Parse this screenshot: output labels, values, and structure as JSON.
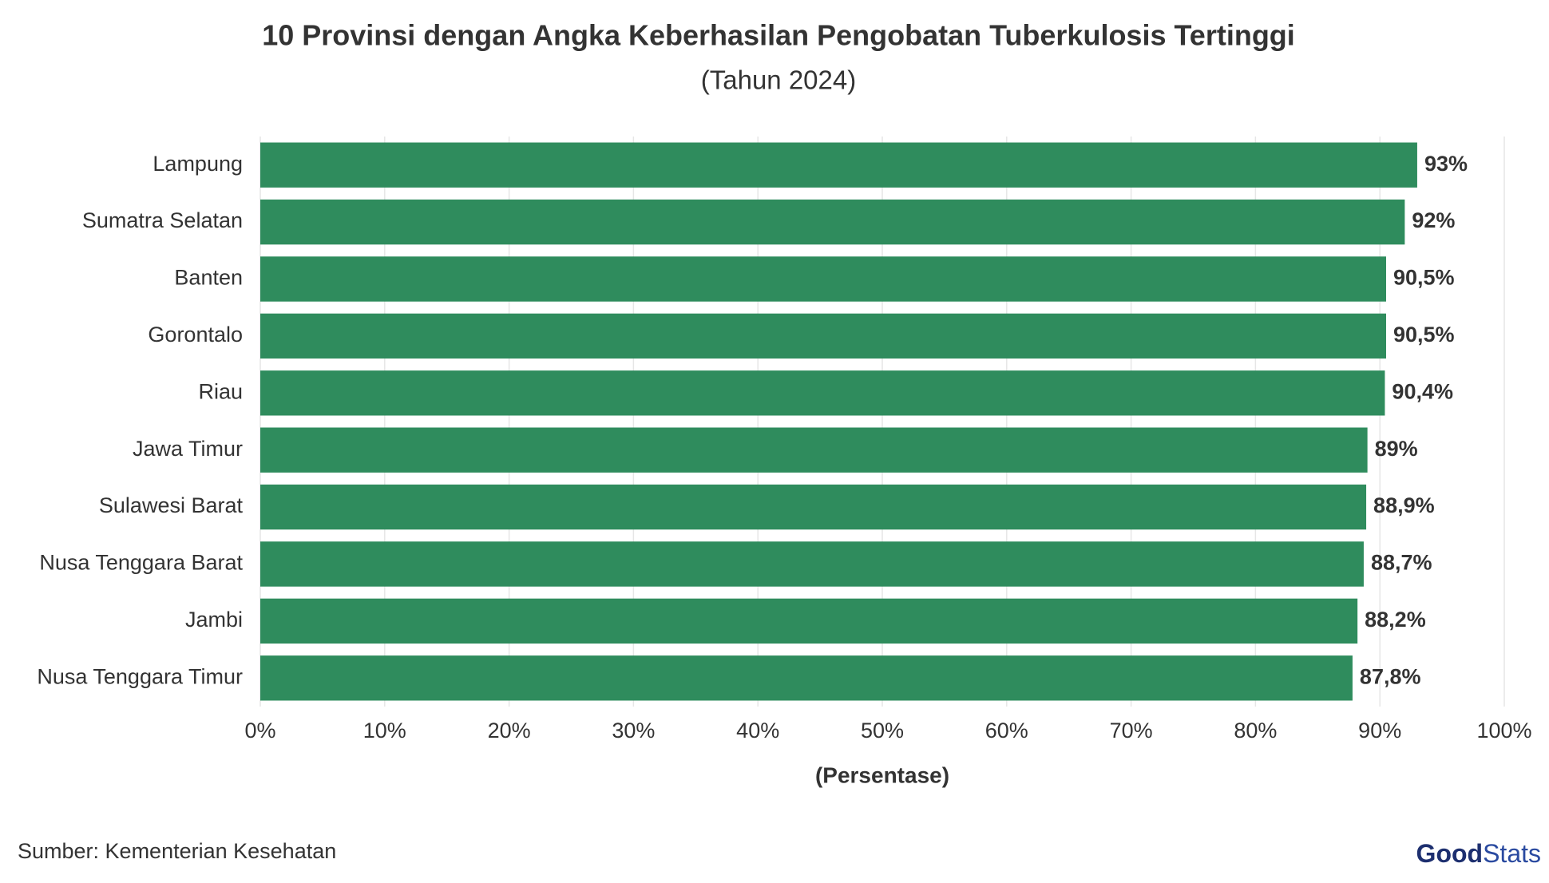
{
  "chart_data": {
    "type": "bar",
    "orientation": "horizontal",
    "title": "10 Provinsi dengan Angka Keberhasilan Pengobatan Tuberkulosis Tertinggi",
    "subtitle": "(Tahun 2024)",
    "x_label": "(Persentase)",
    "source": "Sumber: Kementerian Kesehatan",
    "logo": [
      "Good",
      "Stats"
    ],
    "categories": [
      "Lampung",
      "Sumatra Selatan",
      "Banten",
      "Gorontalo",
      "Riau",
      "Jawa Timur",
      "Sulawesi Barat",
      "Nusa Tenggara Barat",
      "Jambi",
      "Nusa Tenggara Timur"
    ],
    "values": [
      93,
      92,
      90.5,
      90.5,
      90.4,
      89,
      88.9,
      88.7,
      88.2,
      87.8
    ],
    "value_labels": [
      "93%",
      "92%",
      "90,5%",
      "90,5%",
      "90,4%",
      "89%",
      "88,9%",
      "88,7%",
      "88,2%",
      "87,8%"
    ],
    "color": "#2f8c5d",
    "xlim": [
      0,
      100
    ],
    "xticks": [
      {
        "value": 0,
        "label": "0%"
      },
      {
        "value": 10,
        "label": "10%"
      },
      {
        "value": 20,
        "label": "20%"
      },
      {
        "value": 30,
        "label": "30%"
      },
      {
        "value": 40,
        "label": "40%"
      },
      {
        "value": 50,
        "label": "50%"
      },
      {
        "value": 60,
        "label": "60%"
      },
      {
        "value": 70,
        "label": "70%"
      },
      {
        "value": 80,
        "label": "80%"
      },
      {
        "value": 90,
        "label": "90%"
      },
      {
        "value": 100,
        "label": "100%"
      }
    ],
    "grid": true
  }
}
